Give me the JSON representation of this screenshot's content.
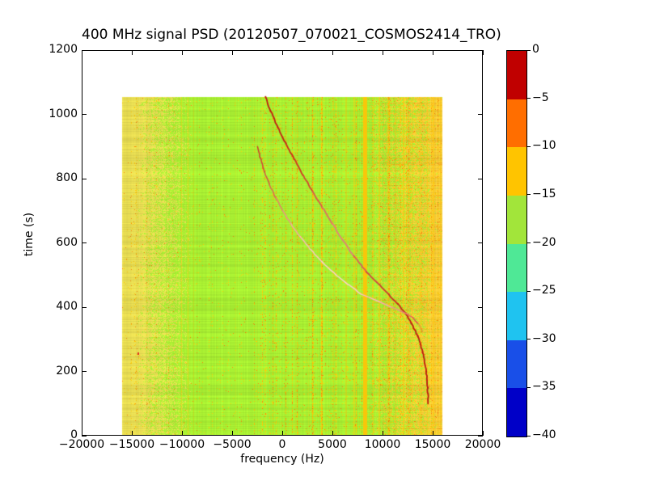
{
  "chart_data": {
    "type": "heatmap",
    "title": "400 MHz signal PSD (20120507_070021_COSMOS2414_TRO)",
    "xlabel": "frequency (Hz)",
    "ylabel": "time (s)",
    "xlim": [
      -20000,
      20000
    ],
    "ylim": [
      0,
      1200
    ],
    "grid": false,
    "legend": "none",
    "xticks": {
      "values": [
        -20000,
        -15000,
        -10000,
        -5000,
        0,
        5000,
        10000,
        15000,
        20000
      ],
      "labels": [
        "−20000",
        "−15000",
        "−10000",
        "−5000",
        "0",
        "5000",
        "10000",
        "15000",
        "20000"
      ]
    },
    "yticks": {
      "values": [
        0,
        200,
        400,
        600,
        800,
        1000,
        1200
      ],
      "labels": [
        "0",
        "200",
        "400",
        "600",
        "800",
        "1000",
        "1200"
      ]
    },
    "colorbar": {
      "levels": [
        0,
        -5,
        -10,
        -15,
        -20,
        -25,
        -30,
        -35,
        -40
      ],
      "labels": [
        "0",
        "−5",
        "−10",
        "−15",
        "−20",
        "−25",
        "−30",
        "−35",
        "−40"
      ],
      "band_colors_top_to_bottom": [
        "#c00000",
        "#ff6e00",
        "#ffc400",
        "#a2e53a",
        "#4fe896",
        "#1fc3f0",
        "#194fe8",
        "#0000c8"
      ]
    },
    "data_extent": {
      "freq_hz": [
        -16000,
        16000
      ],
      "time_s": [
        0,
        1055
      ]
    },
    "background": {
      "green": "#a8ee32",
      "yellow": "#e7dc52",
      "gold": "#fdc408",
      "gold_base": "#f6cc37",
      "orange": "#f5820a",
      "red_dot": "#f04010"
    },
    "zones": {
      "yellow_full_hz": -14500,
      "yellow_end_hz": -9000,
      "gold_start_hz": 8300,
      "gold_solid_hz": 14700
    },
    "stripes_hz": [
      {
        "f": -10100,
        "w": 1,
        "a": 0.45
      },
      {
        "f": -9400,
        "w": 1,
        "a": 0.6
      },
      {
        "f": -8900,
        "w": 1,
        "a": 0.3
      },
      {
        "f": -4700,
        "w": 1,
        "a": 0.16
      },
      {
        "f": -2600,
        "w": 1,
        "a": 0.12
      },
      {
        "f": 1300,
        "w": 1,
        "a": 0.25
      },
      {
        "f": 2600,
        "w": 1,
        "a": 0.2
      },
      {
        "f": 3900,
        "w": 1,
        "a": 0.22
      },
      {
        "f": 5100,
        "w": 1,
        "a": 0.28
      },
      {
        "f": 6400,
        "w": 2,
        "a": 0.4
      },
      {
        "f": 7200,
        "w": 2,
        "a": 0.45
      },
      {
        "f": 8200,
        "w": 5,
        "a": 0.95
      },
      {
        "f": 9000,
        "w": 1,
        "a": 0.5
      },
      {
        "f": 9700,
        "w": 2,
        "a": 0.5
      },
      {
        "f": 10500,
        "w": 1,
        "a": 0.45
      },
      {
        "f": 11300,
        "w": 1,
        "a": 0.4
      },
      {
        "f": 12100,
        "w": 2,
        "a": 0.5
      },
      {
        "f": 12900,
        "w": 1,
        "a": 0.45
      },
      {
        "f": 13700,
        "w": 1,
        "a": 0.5
      },
      {
        "f": 14400,
        "w": 1,
        "a": 0.45
      },
      {
        "f": 15100,
        "w": 2,
        "a": 0.5
      },
      {
        "f": 15700,
        "w": 1,
        "a": 0.45
      }
    ],
    "curves": [
      {
        "name": "doppler-main",
        "width": 1.8,
        "points": [
          [
            1055,
            -1700
          ],
          [
            1010,
            -1150
          ],
          [
            960,
            -450
          ],
          [
            910,
            350
          ],
          [
            860,
            1200
          ],
          [
            810,
            2100
          ],
          [
            760,
            3000
          ],
          [
            710,
            4000
          ],
          [
            660,
            5000
          ],
          [
            610,
            6000
          ],
          [
            560,
            7100
          ],
          [
            510,
            8400
          ],
          [
            470,
            9700
          ],
          [
            440,
            10600
          ],
          [
            410,
            11500
          ],
          [
            380,
            12300
          ],
          [
            350,
            12900
          ],
          [
            310,
            13500
          ],
          [
            260,
            14000
          ],
          [
            200,
            14350
          ],
          [
            150,
            14500
          ],
          [
            100,
            14550
          ]
        ],
        "colors": [
          "#bc1a10",
          "#c01b10",
          "#c41f12",
          "#ca2a18",
          "#d03620",
          "#d44430",
          "#da5a48",
          "#e07060",
          "#e48078",
          "#e08078",
          "#d86058",
          "#d04840",
          "#cc3830",
          "#c82c24",
          "#c4241c",
          "#c01e14",
          "#be1a10",
          "#bc1810",
          "#ba1810",
          "#b81810",
          "#b81810",
          "#b81810"
        ]
      },
      {
        "name": "doppler-secondary",
        "width": 1.5,
        "points": [
          [
            900,
            -2500
          ],
          [
            860,
            -2150
          ],
          [
            820,
            -1750
          ],
          [
            780,
            -1250
          ],
          [
            740,
            -650
          ],
          [
            700,
            50
          ],
          [
            660,
            850
          ],
          [
            620,
            1750
          ],
          [
            580,
            2800
          ],
          [
            540,
            4000
          ],
          [
            500,
            5400
          ],
          [
            470,
            6600
          ],
          [
            440,
            7900
          ],
          [
            415,
            9800
          ],
          [
            400,
            10900
          ],
          [
            388,
            11800
          ],
          [
            378,
            12500
          ],
          [
            368,
            13000
          ],
          [
            350,
            13500
          ],
          [
            325,
            14000
          ]
        ],
        "colors": [
          "#cc3c2c",
          "#d04838",
          "#d45444",
          "#dc6852",
          "#e47e6a",
          "#ec9486",
          "#f4aaa0",
          "#f8bcb4",
          "#fcc8c2",
          "#fdd0cc",
          "#fdd2d0",
          "#fcccca",
          "#f8beba",
          "#f4aca6",
          "#ee968e",
          "#e87e74",
          "#e06a60",
          "#da5850",
          "#d4484066",
          "#d03c3400"
        ]
      }
    ],
    "speck": {
      "t": 260,
      "f": -14400,
      "color": "#e03020"
    },
    "texture": {
      "seed": 20120507,
      "row_jitter": 0.05,
      "speck_base": 0.012,
      "col_boost_prob": 0.11,
      "col_boost_max": 0.5,
      "rare_orange": 0.0008,
      "row_streak_prob": 0.06
    }
  }
}
